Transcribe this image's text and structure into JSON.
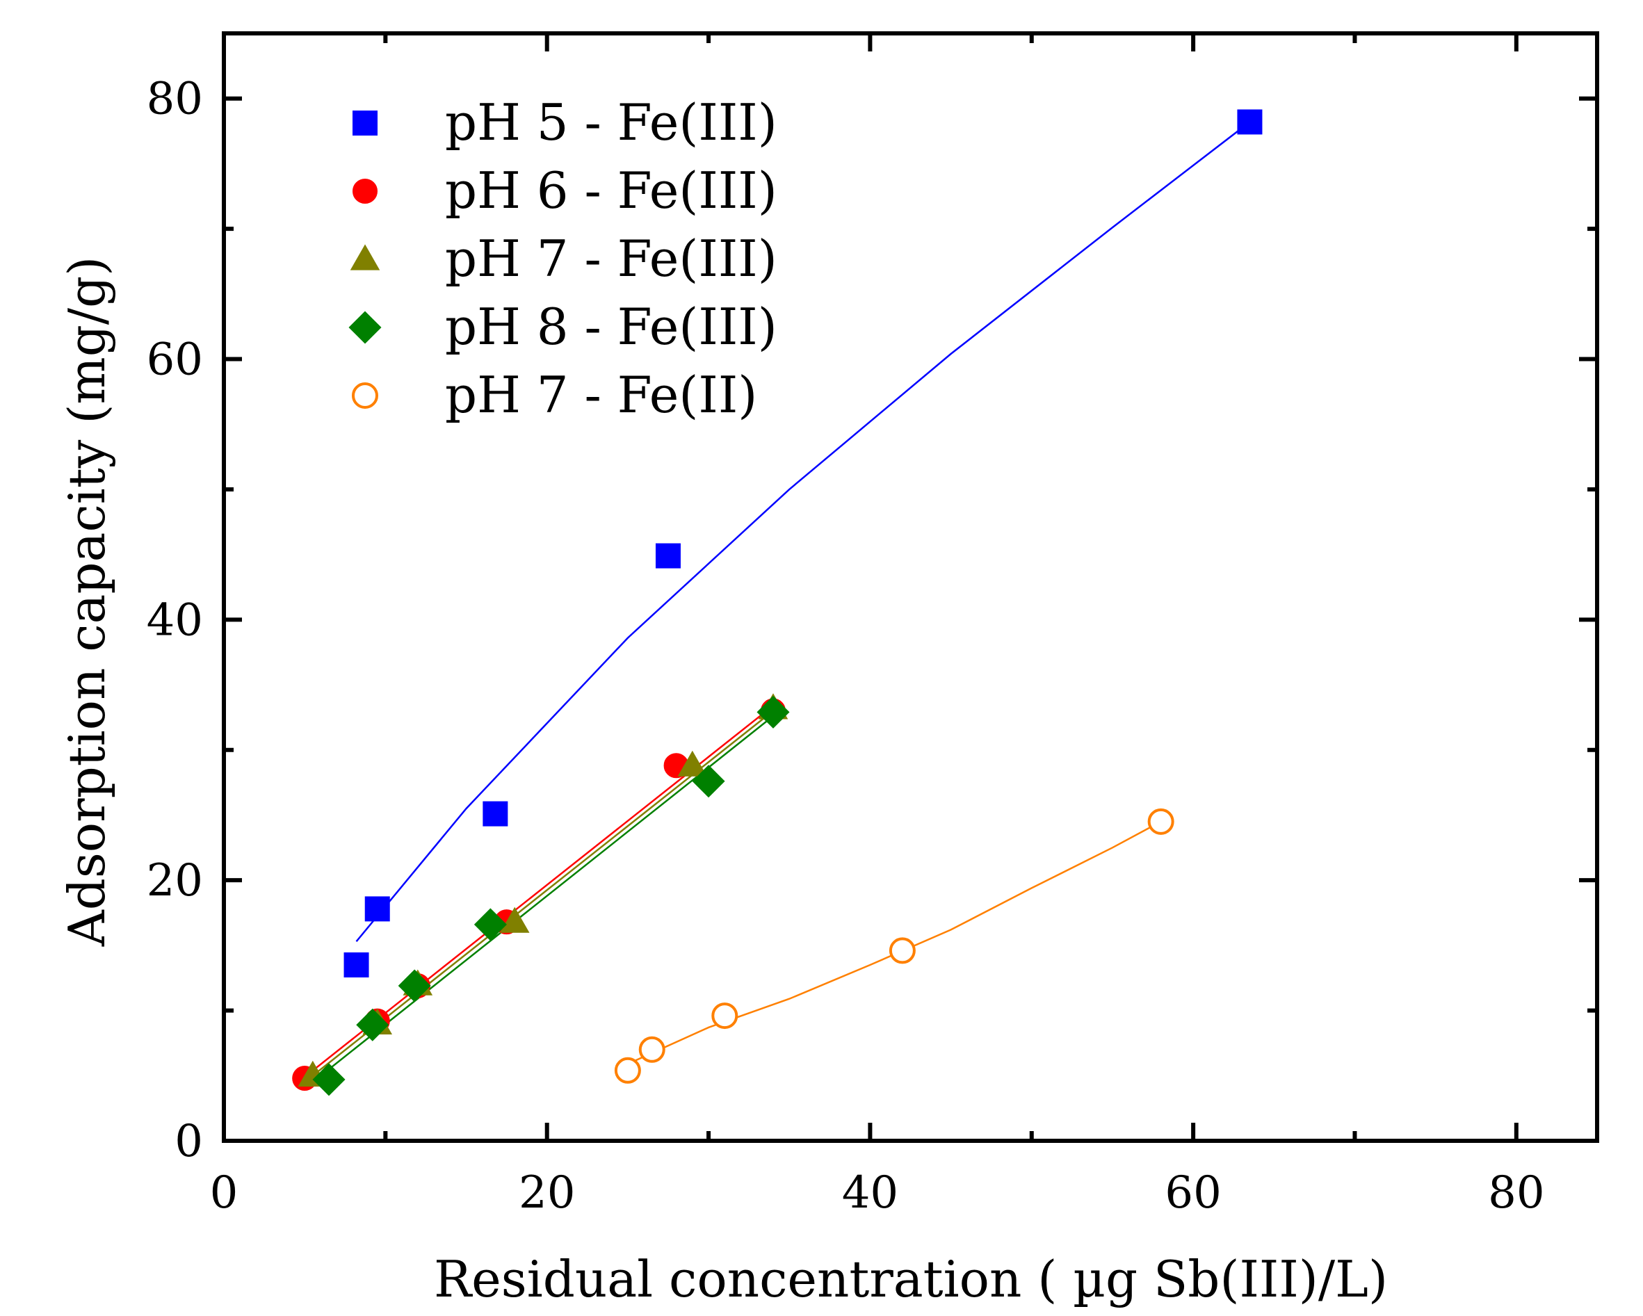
{
  "chart_data": {
    "type": "scatter",
    "title": "",
    "xlabel": "Residual concentration ( µg Sb(III)/L)",
    "ylabel": "Adsorption capacity (mg/g)",
    "xlim": [
      0,
      85
    ],
    "ylim": [
      0,
      85
    ],
    "x_major_ticks": [
      0,
      20,
      40,
      60,
      80
    ],
    "x_minor_ticks": [
      10,
      30,
      50,
      70
    ],
    "y_major_ticks": [
      0,
      20,
      40,
      60,
      80
    ],
    "y_minor_ticks": [
      10,
      30,
      50,
      70
    ],
    "x_tick_labels": [
      "0",
      "20",
      "40",
      "60",
      "80"
    ],
    "y_tick_labels": [
      "0",
      "20",
      "40",
      "60",
      "80"
    ],
    "grid": false,
    "legend_position": "top-left",
    "series": [
      {
        "name": "pH 5 - Fe(III)",
        "color": "#0000ff",
        "marker": "square",
        "filled": true,
        "points": [
          [
            8.2,
            13.5
          ],
          [
            9.5,
            17.8
          ],
          [
            16.8,
            25.1
          ],
          [
            27.5,
            44.9
          ],
          [
            63.5,
            78.2
          ]
        ],
        "fit": [
          [
            8.2,
            15.3
          ],
          [
            15,
            25.5
          ],
          [
            25,
            38.6
          ],
          [
            35,
            50.0
          ],
          [
            45,
            60.4
          ],
          [
            55,
            70.1
          ],
          [
            63.5,
            78.2
          ]
        ]
      },
      {
        "name": "pH 6 - Fe(III)",
        "color": "#ff0000",
        "marker": "circle",
        "filled": true,
        "points": [
          [
            5.0,
            4.8
          ],
          [
            9.5,
            9.2
          ],
          [
            12.0,
            11.9
          ],
          [
            17.5,
            16.8
          ],
          [
            28.0,
            28.8
          ],
          [
            34.0,
            33.0
          ]
        ],
        "fit": [
          [
            5.0,
            4.9
          ],
          [
            34.0,
            33.4
          ]
        ]
      },
      {
        "name": "pH 7 - Fe(III)",
        "color": "#808000",
        "marker": "triangle",
        "filled": true,
        "points": [
          [
            5.5,
            5.0
          ],
          [
            9.5,
            9.0
          ],
          [
            12.0,
            12.0
          ],
          [
            18.0,
            16.8
          ],
          [
            29.0,
            28.8
          ],
          [
            34.0,
            33.2
          ]
        ],
        "fit": [
          [
            5.5,
            5.0
          ],
          [
            34.0,
            33.0
          ]
        ]
      },
      {
        "name": "pH 8 - Fe(III)",
        "color": "#008000",
        "marker": "diamond",
        "filled": true,
        "points": [
          [
            6.5,
            4.7
          ],
          [
            9.2,
            8.9
          ],
          [
            11.8,
            11.9
          ],
          [
            16.5,
            16.6
          ],
          [
            30.0,
            27.6
          ],
          [
            34.0,
            32.9
          ]
        ],
        "fit": [
          [
            6.0,
            5.0
          ],
          [
            34.0,
            32.6
          ]
        ]
      },
      {
        "name": "pH 7 - Fe(II)",
        "color": "#ff8000",
        "marker": "circle",
        "filled": false,
        "points": [
          [
            25.0,
            5.4
          ],
          [
            26.5,
            7.0
          ],
          [
            31.0,
            9.6
          ],
          [
            42.0,
            14.6
          ],
          [
            58.0,
            24.5
          ]
        ],
        "fit": [
          [
            25.0,
            5.9
          ],
          [
            30,
            8.7
          ],
          [
            35,
            10.9
          ],
          [
            40,
            13.5
          ],
          [
            45,
            16.2
          ],
          [
            50,
            19.4
          ],
          [
            55,
            22.5
          ],
          [
            58.0,
            24.5
          ]
        ]
      }
    ]
  }
}
